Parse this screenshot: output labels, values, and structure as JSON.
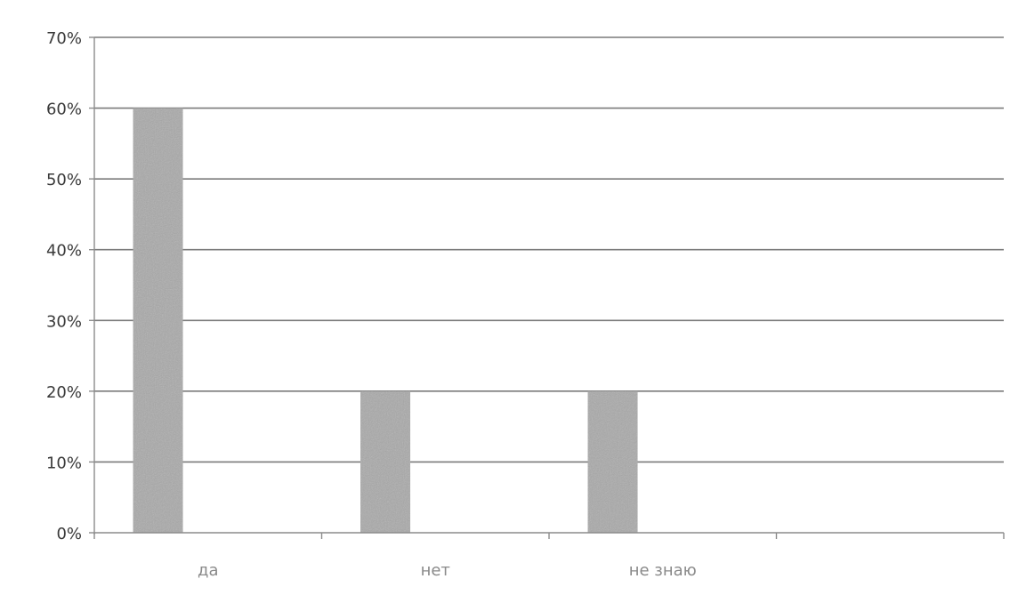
{
  "chart_data": {
    "type": "bar",
    "categories": [
      "да",
      "нет",
      "не знаю"
    ],
    "values": [
      60,
      20,
      20
    ],
    "y_unit": "%",
    "ylim": [
      0,
      70
    ],
    "yticks": [
      "0%",
      "10%",
      "20%",
      "30%",
      "40%",
      "50%",
      "60%",
      "70%"
    ],
    "grid": true,
    "title": "",
    "xlabel": "",
    "ylabel": "",
    "bar_color": "#a9a9a9"
  }
}
